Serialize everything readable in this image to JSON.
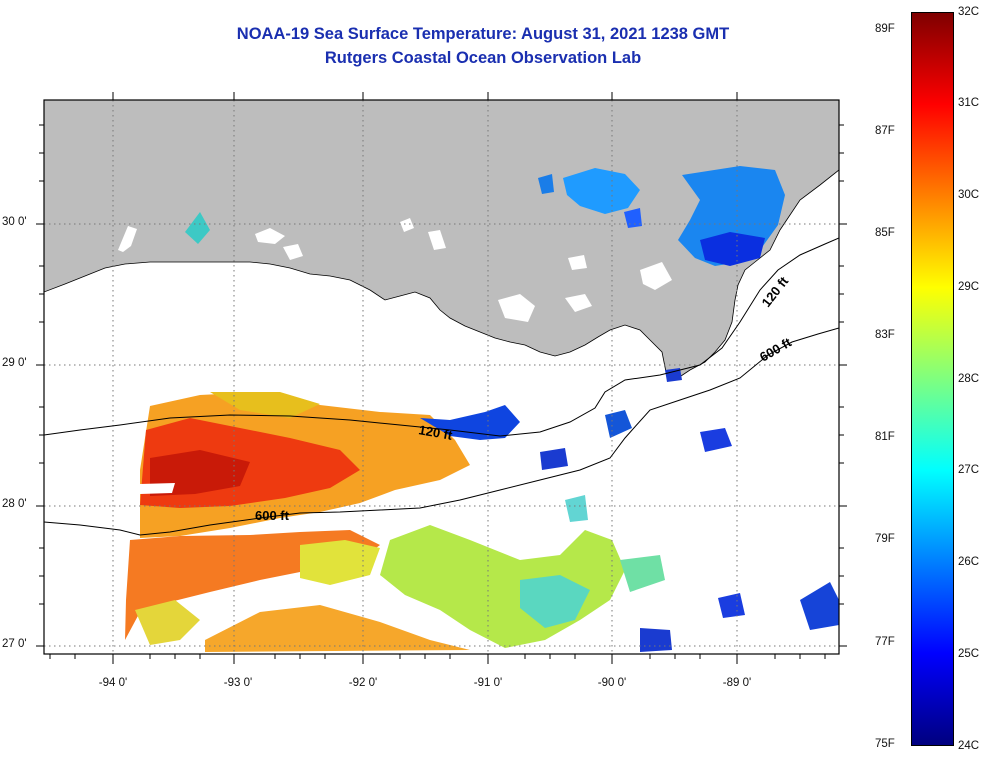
{
  "title_line1": "NOAA-19 Sea Surface Temperature:  August 31, 2021 1238 GMT",
  "title_line2": "Rutgers Coastal Ocean Observation Lab",
  "map": {
    "lon_labels": [
      "-94 0'",
      "-93 0'",
      "-92 0'",
      "-91 0'",
      "-90 0'",
      "-89 0'"
    ],
    "lat_labels": [
      "30 0'",
      "29 0'",
      "28 0'",
      "27 0'"
    ],
    "contours": [
      {
        "label": "120 ft"
      },
      {
        "label": "600 ft"
      }
    ],
    "colors": {
      "land": "#bdbdbd",
      "ocean_no_data": "#ffffff",
      "grid": "#777777"
    }
  },
  "colorbar": {
    "range_c": [
      24,
      32
    ],
    "range_f": [
      75,
      89
    ],
    "celsius_labels": [
      "32C",
      "31C",
      "30C",
      "29C",
      "28C",
      "27C",
      "26C",
      "25C",
      "24C"
    ],
    "fahrenheit_labels": [
      "89F",
      "87F",
      "85F",
      "83F",
      "81F",
      "79F",
      "77F",
      "75F"
    ],
    "colormap": [
      "#00007f",
      "#0000ff",
      "#007fff",
      "#00ffff",
      "#7fff7f",
      "#ffff00",
      "#ff7f00",
      "#ff0000",
      "#7f0000"
    ]
  }
}
